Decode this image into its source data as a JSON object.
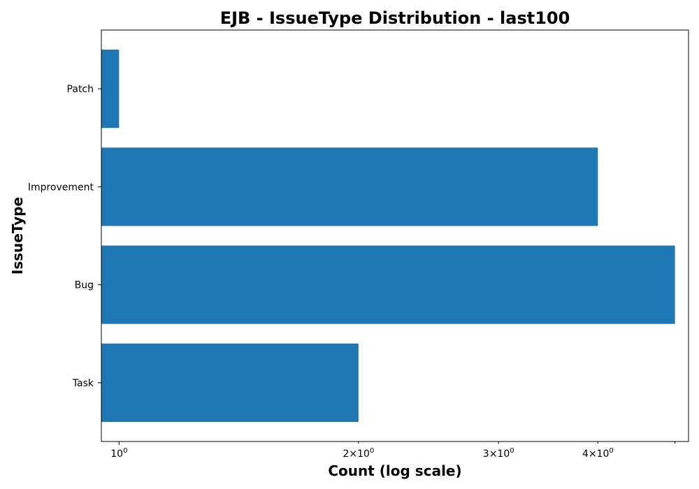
{
  "chart_data": {
    "type": "bar",
    "orientation": "horizontal",
    "title": "EJB - IssueType Distribution - last100",
    "xlabel": "Count (log scale)",
    "ylabel": "IssueType",
    "x_scale": "log",
    "xlim": [
      0.95,
      5.2
    ],
    "categories": [
      "Task",
      "Bug",
      "Improvement",
      "Patch"
    ],
    "values": [
      2,
      5,
      4,
      1
    ],
    "bar_color": "#1f77b4",
    "grid": false,
    "x_major_ticks": [
      {
        "base": "10",
        "exp": "0",
        "value": 1
      }
    ],
    "x_minor_ticks": [
      {
        "mant": "2",
        "base": "10",
        "exp": "0",
        "value": 2
      },
      {
        "mant": "3",
        "base": "10",
        "exp": "0",
        "value": 3
      },
      {
        "mant": "4",
        "base": "10",
        "exp": "0",
        "value": 4
      }
    ],
    "x_unlabeled_minor_ticks": [
      5
    ]
  }
}
